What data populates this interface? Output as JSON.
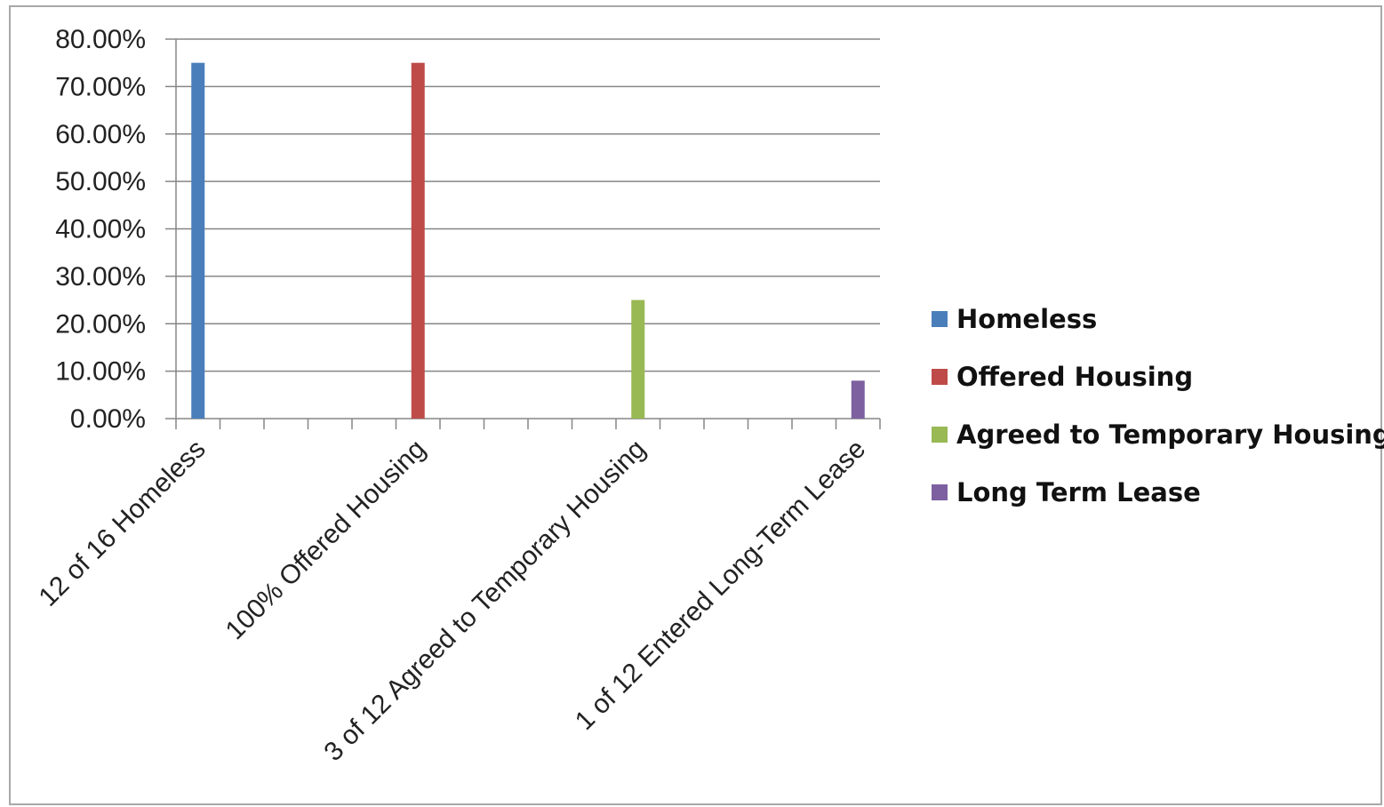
{
  "chart_data": {
    "type": "bar",
    "title": "",
    "xlabel": "",
    "ylabel": "",
    "categories": [
      "12 of 16 Homeless",
      "100% Offered Housing",
      "3 of 12 Agreed to Temporary Housing",
      "1 of 12 Entered Long-Term Lease"
    ],
    "series": [
      {
        "name": "Homeless",
        "color": "#4a7ebb",
        "values": [
          75,
          null,
          null,
          null
        ]
      },
      {
        "name": "Offered Housing",
        "color": "#be4b48",
        "values": [
          null,
          75,
          null,
          null
        ]
      },
      {
        "name": "Agreed to Temporary Housing",
        "color": "#98b954",
        "values": [
          null,
          null,
          25,
          null
        ]
      },
      {
        "name": "Long Term Lease",
        "color": "#7d60a0",
        "values": [
          null,
          null,
          null,
          8
        ]
      }
    ],
    "ylim": [
      0,
      80
    ],
    "yticks": [
      0,
      10,
      20,
      30,
      40,
      50,
      60,
      70,
      80
    ],
    "ytick_labels": [
      "0.00%",
      "10.00%",
      "20.00%",
      "30.00%",
      "40.00%",
      "50.00%",
      "60.00%",
      "70.00%",
      "80.00%"
    ],
    "grid": true,
    "legend_position": "right"
  }
}
